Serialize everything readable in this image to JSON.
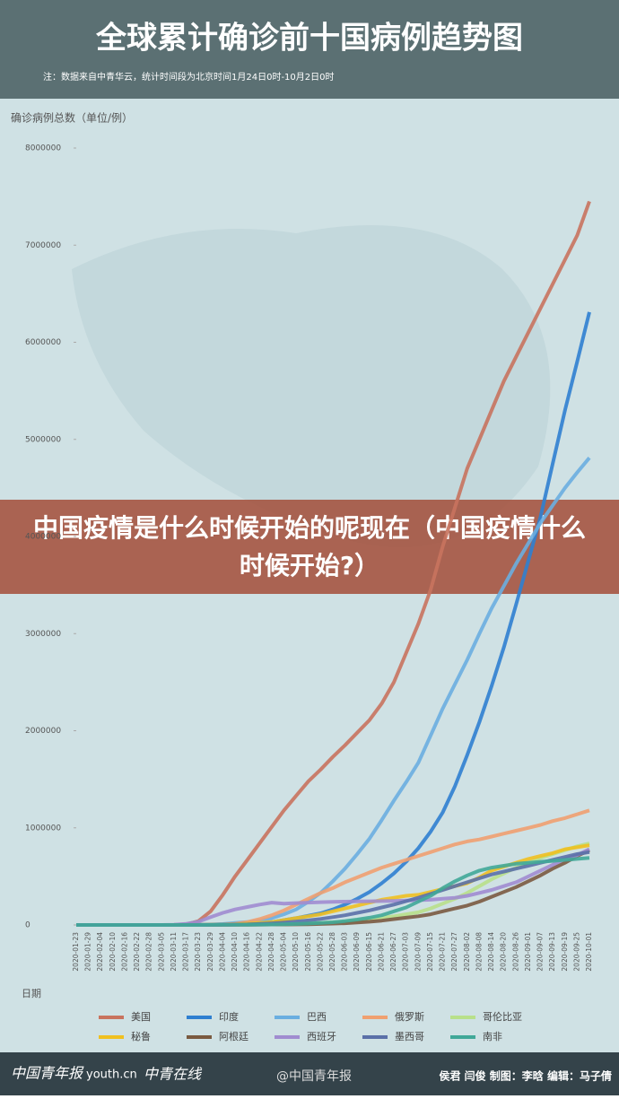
{
  "chart_data": {
    "type": "line",
    "title": "全球累计确诊前十国病例趋势图",
    "subtitle": "注：数据来自中青华云，统计时间段为北京时间1月24日0时-10月2日0时",
    "y_label": "确诊病例总数（单位/例）",
    "x_label": "日期",
    "ylim": [
      0,
      8000000
    ],
    "yticks": [
      0,
      1000000,
      2000000,
      3000000,
      4000000,
      5000000,
      6000000,
      7000000,
      8000000
    ],
    "grid": false,
    "categories": [
      "2020-01-23",
      "2020-01-29",
      "2020-02-04",
      "2020-02-10",
      "2020-02-16",
      "2020-02-22",
      "2020-02-28",
      "2020-03-05",
      "2020-03-11",
      "2020-03-17",
      "2020-03-23",
      "2020-03-29",
      "2020-04-04",
      "2020-04-10",
      "2020-04-16",
      "2020-04-22",
      "2020-04-28",
      "2020-05-04",
      "2020-05-10",
      "2020-05-16",
      "2020-05-22",
      "2020-05-28",
      "2020-06-03",
      "2020-06-09",
      "2020-06-15",
      "2020-06-21",
      "2020-06-27",
      "2020-07-03",
      "2020-07-09",
      "2020-07-15",
      "2020-07-21",
      "2020-07-27",
      "2020-08-02",
      "2020-08-08",
      "2020-08-14",
      "2020-08-20",
      "2020-08-26",
      "2020-09-01",
      "2020-09-07",
      "2020-09-13",
      "2020-09-19",
      "2020-09-25",
      "2020-10-01"
    ],
    "series": [
      {
        "name": "美国",
        "color": "#c8735e",
        "values": [
          0,
          0,
          0,
          0,
          0,
          0,
          0,
          0,
          1000,
          6000,
          40000,
          140000,
          310000,
          500000,
          670000,
          840000,
          1010000,
          1180000,
          1330000,
          1480000,
          1600000,
          1730000,
          1850000,
          1980000,
          2110000,
          2280000,
          2500000,
          2800000,
          3100000,
          3450000,
          3900000,
          4300000,
          4700000,
          5000000,
          5300000,
          5600000,
          5850000,
          6100000,
          6350000,
          6600000,
          6850000,
          7100000,
          7450000
        ]
      },
      {
        "name": "印度",
        "color": "#2f7fd0",
        "values": [
          0,
          0,
          0,
          0,
          0,
          0,
          0,
          0,
          0,
          0,
          500,
          1000,
          3000,
          7000,
          13000,
          21000,
          30000,
          50000,
          70000,
          95000,
          120000,
          160000,
          210000,
          270000,
          340000,
          430000,
          530000,
          650000,
          790000,
          960000,
          1160000,
          1430000,
          1750000,
          2090000,
          2460000,
          2860000,
          3300000,
          3750000,
          4200000,
          4750000,
          5300000,
          5800000,
          6310000
        ]
      },
      {
        "name": "巴西",
        "color": "#6aaee0",
        "values": [
          0,
          0,
          0,
          0,
          0,
          0,
          0,
          0,
          0,
          0,
          1500,
          4000,
          9000,
          20000,
          30000,
          45000,
          70000,
          110000,
          160000,
          240000,
          330000,
          450000,
          580000,
          730000,
          890000,
          1080000,
          1280000,
          1470000,
          1670000,
          1950000,
          2230000,
          2480000,
          2730000,
          3000000,
          3260000,
          3490000,
          3720000,
          3930000,
          4140000,
          4320000,
          4500000,
          4660000,
          4810000
        ]
      },
      {
        "name": "俄罗斯",
        "color": "#f0a070",
        "values": [
          0,
          0,
          0,
          0,
          0,
          0,
          0,
          0,
          0,
          0,
          500,
          2000,
          5000,
          12000,
          30000,
          60000,
          100000,
          150000,
          210000,
          270000,
          330000,
          380000,
          440000,
          490000,
          540000,
          590000,
          630000,
          670000,
          710000,
          750000,
          790000,
          830000,
          860000,
          880000,
          910000,
          940000,
          970000,
          1000000,
          1030000,
          1070000,
          1100000,
          1140000,
          1180000
        ]
      },
      {
        "name": "哥伦比亚",
        "color": "#b8e08a",
        "values": [
          0,
          0,
          0,
          0,
          0,
          0,
          0,
          0,
          0,
          0,
          300,
          700,
          1400,
          2500,
          3500,
          4500,
          6000,
          9000,
          12000,
          17000,
          22000,
          28000,
          35000,
          45000,
          60000,
          75000,
          90000,
          110000,
          130000,
          170000,
          220000,
          270000,
          330000,
          400000,
          470000,
          530000,
          590000,
          640000,
          690000,
          730000,
          770000,
          810000,
          840000
        ]
      },
      {
        "name": "秘鲁",
        "color": "#f0c020",
        "values": [
          0,
          0,
          0,
          0,
          0,
          0,
          0,
          0,
          0,
          0,
          400,
          900,
          2000,
          6000,
          13000,
          20000,
          30000,
          50000,
          70000,
          90000,
          110000,
          140000,
          170000,
          200000,
          230000,
          260000,
          280000,
          300000,
          310000,
          340000,
          370000,
          400000,
          430000,
          490000,
          560000,
          600000,
          640000,
          680000,
          710000,
          740000,
          780000,
          800000,
          820000
        ]
      },
      {
        "name": "阿根廷",
        "color": "#7a5a40",
        "values": [
          0,
          0,
          0,
          0,
          0,
          0,
          0,
          0,
          0,
          0,
          300,
          800,
          1500,
          2000,
          2700,
          3500,
          4300,
          5000,
          6000,
          7500,
          10000,
          14000,
          18000,
          25000,
          33000,
          44000,
          60000,
          75000,
          90000,
          110000,
          140000,
          170000,
          200000,
          240000,
          290000,
          340000,
          390000,
          450000,
          510000,
          580000,
          640000,
          710000,
          770000
        ]
      },
      {
        "name": "西班牙",
        "color": "#a08cd0",
        "values": [
          0,
          0,
          0,
          0,
          0,
          0,
          0,
          0,
          2000,
          12000,
          33000,
          80000,
          125000,
          160000,
          185000,
          210000,
          230000,
          220000,
          225000,
          230000,
          235000,
          238000,
          240000,
          242000,
          244000,
          246000,
          248000,
          251000,
          255000,
          260000,
          270000,
          280000,
          300000,
          330000,
          360000,
          400000,
          440000,
          500000,
          560000,
          620000,
          680000,
          720000,
          780000
        ]
      },
      {
        "name": "墨西哥",
        "color": "#5a70a8",
        "values": [
          0,
          0,
          0,
          0,
          0,
          0,
          0,
          0,
          0,
          0,
          300,
          1000,
          2000,
          3500,
          5400,
          10000,
          16000,
          24000,
          35000,
          47000,
          62000,
          80000,
          100000,
          125000,
          150000,
          180000,
          210000,
          245000,
          280000,
          320000,
          360000,
          400000,
          440000,
          480000,
          520000,
          550000,
          580000,
          610000,
          640000,
          670000,
          700000,
          730000,
          750000
        ]
      },
      {
        "name": "南非",
        "color": "#40a898",
        "values": [
          0,
          0,
          0,
          0,
          0,
          0,
          0,
          0,
          0,
          0,
          0,
          1300,
          1600,
          2000,
          2600,
          3500,
          5000,
          7000,
          10000,
          15000,
          21000,
          28000,
          40000,
          55000,
          75000,
          100000,
          140000,
          180000,
          240000,
          300000,
          380000,
          450000,
          510000,
          560000,
          590000,
          610000,
          630000,
          640000,
          650000,
          660000,
          670000,
          680000,
          690000
        ]
      }
    ]
  },
  "banner": "中国疫情是什么时候开始的呢现在（中国疫情什么时候开始?）",
  "footer": {
    "logo1": "中国青年报",
    "logo2": "youth.cn",
    "logo3": "中青在线",
    "handle": "@中国青年报",
    "credits": "侯君 闫俊 制图：李晗 编辑：马子倩"
  }
}
